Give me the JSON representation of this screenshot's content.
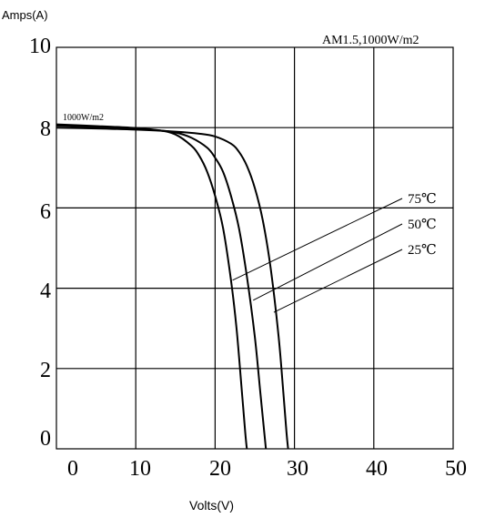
{
  "chart_data": {
    "type": "line",
    "ylabel": "Amps(A)",
    "xlabel": "Volts(V)",
    "annotation": "AM1.5,1000W/m2",
    "irradiance_label": "1000W/m2",
    "xlim": [
      0,
      50
    ],
    "ylim": [
      0,
      10
    ],
    "x_ticks": [
      "0",
      "10",
      "20",
      "30",
      "40",
      "50"
    ],
    "y_ticks": [
      "0",
      "2",
      "4",
      "6",
      "8",
      "10"
    ],
    "grid": true,
    "series": [
      {
        "name": "75℃",
        "points": [
          [
            0,
            8.08
          ],
          [
            5,
            8.04
          ],
          [
            10,
            7.99
          ],
          [
            13,
            7.93
          ],
          [
            15,
            7.83
          ],
          [
            17,
            7.55
          ],
          [
            18,
            7.3
          ],
          [
            19,
            6.9
          ],
          [
            20,
            6.3
          ],
          [
            21,
            5.5
          ],
          [
            22,
            4.2
          ],
          [
            22.7,
            3.0
          ],
          [
            23.3,
            1.6
          ],
          [
            23.8,
            0.4
          ],
          [
            24.0,
            0
          ]
        ]
      },
      {
        "name": "50℃",
        "points": [
          [
            0,
            8.05
          ],
          [
            5,
            8.02
          ],
          [
            10,
            7.97
          ],
          [
            13,
            7.93
          ],
          [
            15,
            7.88
          ],
          [
            17,
            7.75
          ],
          [
            19,
            7.5
          ],
          [
            20,
            7.25
          ],
          [
            21,
            6.9
          ],
          [
            22,
            6.3
          ],
          [
            23,
            5.5
          ],
          [
            24,
            4.3
          ],
          [
            25,
            2.8
          ],
          [
            25.7,
            1.4
          ],
          [
            26.2,
            0.4
          ],
          [
            26.4,
            0
          ]
        ]
      },
      {
        "name": "25℃",
        "points": [
          [
            0,
            8.0
          ],
          [
            5,
            7.98
          ],
          [
            10,
            7.95
          ],
          [
            15,
            7.9
          ],
          [
            18,
            7.85
          ],
          [
            20,
            7.78
          ],
          [
            22,
            7.6
          ],
          [
            23,
            7.4
          ],
          [
            24,
            7.05
          ],
          [
            25,
            6.5
          ],
          [
            26,
            5.7
          ],
          [
            27,
            4.5
          ],
          [
            28,
            2.8
          ],
          [
            28.6,
            1.4
          ],
          [
            29.0,
            0.4
          ],
          [
            29.2,
            0
          ]
        ]
      }
    ],
    "callouts": [
      {
        "series": "75℃",
        "label": "75℃",
        "at": [
          22.2,
          4.2
        ]
      },
      {
        "series": "50℃",
        "label": "50℃",
        "at": [
          24.8,
          3.7
        ]
      },
      {
        "series": "25℃",
        "label": "25℃",
        "at": [
          27.4,
          3.4
        ]
      }
    ]
  }
}
